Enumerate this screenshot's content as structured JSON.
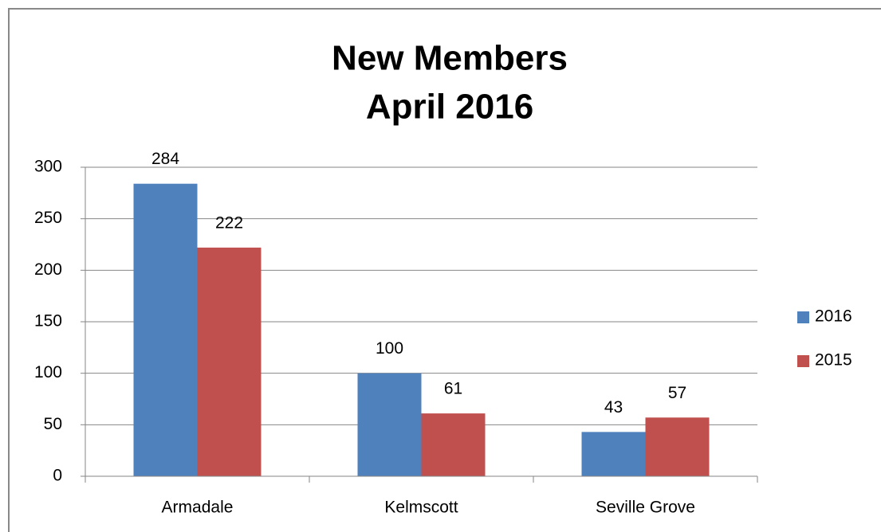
{
  "chart_data": {
    "type": "bar",
    "title": "New Members",
    "subtitle": "April 2016",
    "categories": [
      "Armadale",
      "Kelmscott",
      "Seville Grove"
    ],
    "series": [
      {
        "name": "2016",
        "color": "#4f81bd",
        "values": [
          284,
          100,
          43
        ]
      },
      {
        "name": "2015",
        "color": "#c0504d",
        "values": [
          222,
          61,
          57
        ]
      }
    ],
    "ylim": [
      0,
      300
    ],
    "yticks": [
      0,
      50,
      100,
      150,
      200,
      250,
      300
    ],
    "grid": true,
    "legend": "right"
  }
}
